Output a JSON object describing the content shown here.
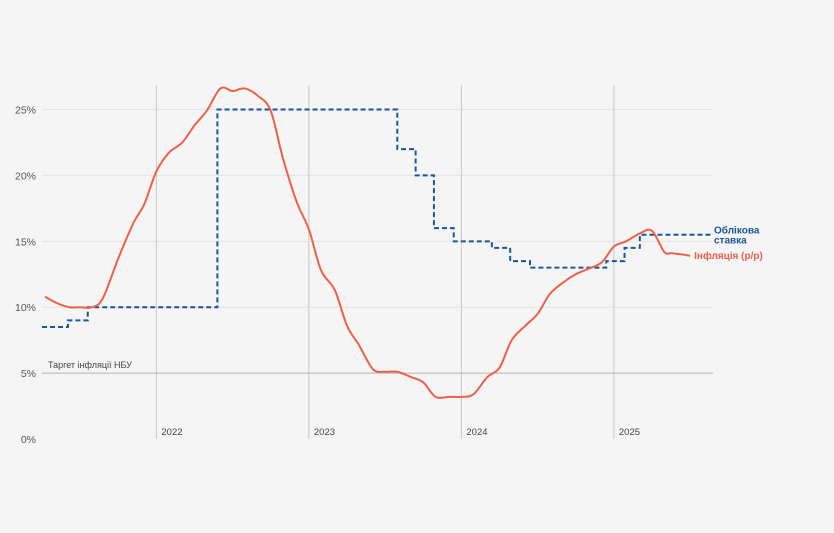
{
  "colors": {
    "policy_rate": "#1a56a0",
    "inflation": "#ef6048",
    "grid": "#e4e4e4",
    "year_line": "#c8c8c8",
    "target_line": "#b5b5b5"
  },
  "chart_data": {
    "type": "line",
    "title": "",
    "xlabel": "",
    "ylabel": "",
    "ylim": [
      0,
      28
    ],
    "y_ticks": [
      0,
      5,
      10,
      15,
      20,
      25
    ],
    "y_tick_labels": [
      "0%",
      "5%",
      "10%",
      "15%",
      "20%",
      "25%"
    ],
    "xlim": [
      2021.25,
      2025.65
    ],
    "year_marks": [
      {
        "x": 2022,
        "label": "2022"
      },
      {
        "x": 2023,
        "label": "2023"
      },
      {
        "x": 2024,
        "label": "2024"
      },
      {
        "x": 2025,
        "label": "2025"
      }
    ],
    "target": {
      "value": 5,
      "label": "Таргет інфляції НБУ"
    },
    "series": [
      {
        "name": "Облікова ставка",
        "name_lines": [
          "Облікова",
          "ставка"
        ],
        "style": "dashed-step",
        "x": [
          2021.25,
          2021.42,
          2021.55,
          2021.92,
          2022.4,
          2023.58,
          2023.7,
          2023.82,
          2023.95,
          2024.2,
          2024.32,
          2024.45,
          2024.95,
          2025.07,
          2025.17,
          2025.65
        ],
        "values": [
          8.5,
          9,
          10,
          10,
          25,
          22,
          20,
          16,
          15,
          14.5,
          13.5,
          13,
          13.5,
          14.5,
          15.5,
          15.5
        ]
      },
      {
        "name": "Інфляція (р/р)",
        "style": "solid",
        "x": [
          2021.27,
          2021.35,
          2021.43,
          2021.5,
          2021.58,
          2021.65,
          2021.75,
          2021.85,
          2021.92,
          2022.0,
          2022.08,
          2022.17,
          2022.25,
          2022.33,
          2022.42,
          2022.5,
          2022.58,
          2022.67,
          2022.75,
          2022.83,
          2022.92,
          2023.0,
          2023.08,
          2023.17,
          2023.25,
          2023.33,
          2023.42,
          2023.5,
          2023.58,
          2023.67,
          2023.75,
          2023.83,
          2023.92,
          2024.0,
          2024.08,
          2024.17,
          2024.25,
          2024.33,
          2024.42,
          2024.5,
          2024.58,
          2024.67,
          2024.75,
          2024.83,
          2024.92,
          2025.0,
          2025.08,
          2025.17,
          2025.25,
          2025.33,
          2025.38,
          2025.45,
          2025.5
        ],
        "values": [
          10.8,
          10.3,
          10.0,
          10.0,
          10.0,
          10.7,
          13.7,
          16.4,
          17.8,
          20.3,
          21.7,
          22.5,
          23.8,
          24.9,
          26.6,
          26.4,
          26.6,
          26.0,
          24.9,
          21.3,
          18.0,
          15.9,
          12.8,
          11.3,
          8.6,
          7.1,
          5.3,
          5.1,
          5.1,
          4.7,
          4.3,
          3.2,
          3.2,
          3.2,
          3.4,
          4.7,
          5.4,
          7.5,
          8.6,
          9.5,
          11.0,
          11.9,
          12.5,
          12.9,
          13.4,
          14.6,
          15.0,
          15.6,
          15.8,
          14.2,
          14.1,
          14.0,
          13.9
        ]
      }
    ]
  }
}
